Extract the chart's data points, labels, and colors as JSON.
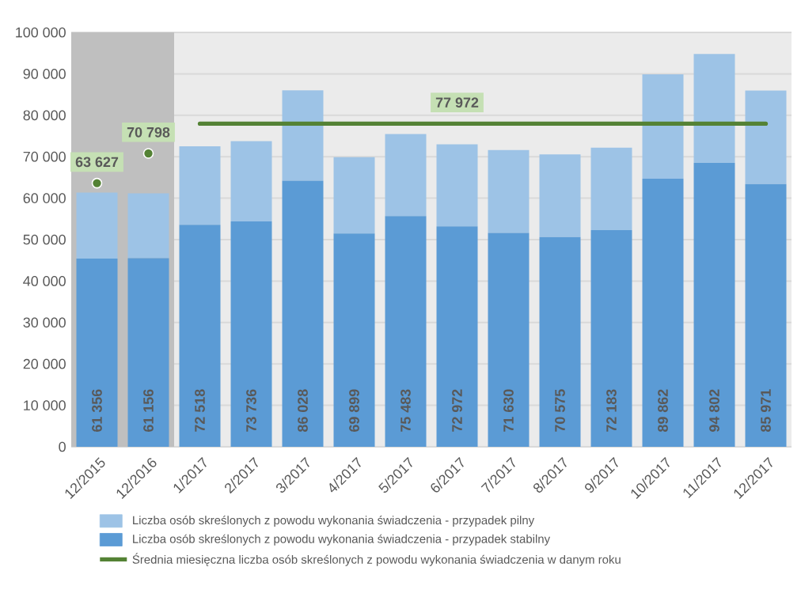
{
  "chart_data": {
    "type": "bar",
    "stacked": true,
    "grid": "y",
    "legend": "bottom",
    "categories": [
      "12/2015",
      "12/2016",
      "1/2017",
      "2/2017",
      "3/2017",
      "4/2017",
      "5/2017",
      "6/2017",
      "7/2017",
      "8/2017",
      "9/2017",
      "10/2017",
      "11/2017",
      "12/2017"
    ],
    "ylim": [
      0,
      100000
    ],
    "yticks": [
      0,
      {
        "value": 10000,
        "label": "10 000"
      },
      {
        "value": 20000,
        "label": "20 000"
      },
      {
        "value": 30000,
        "label": "30 000"
      },
      {
        "value": 40000,
        "label": "40 000"
      },
      {
        "value": 50000,
        "label": "50 000"
      },
      {
        "value": 60000,
        "label": "60 000"
      },
      {
        "value": 70000,
        "label": "70 000"
      },
      {
        "value": 80000,
        "label": "80 000"
      },
      {
        "value": 90000,
        "label": "90 000"
      },
      {
        "value": 100000,
        "label": "100 000"
      }
    ],
    "series": [
      {
        "name": "Liczba osób skreślonych z powodu wykonania świadczenia - przypadek stabilny",
        "color": "#5b9bd5",
        "values": [
          45400,
          45500,
          53600,
          54400,
          64200,
          51500,
          55700,
          53200,
          51600,
          50600,
          52300,
          64700,
          68500,
          63400
        ]
      },
      {
        "name": "Liczba osób skreślonych z powodu wykonania świadczenia - przypadek pilny",
        "color": "#9dc3e6",
        "values": [
          15956,
          15656,
          18918,
          19336,
          21828,
          18399,
          19783,
          19772,
          20030,
          19975,
          19883,
          25162,
          26302,
          22571
        ]
      },
      {
        "type": "scatter",
        "marker": "circle",
        "color": "#548235",
        "values": [
          63627,
          70798,
          null,
          null,
          null,
          null,
          null,
          null,
          null,
          null,
          null,
          null,
          null,
          null
        ],
        "value_labels": [
          "63 627",
          "70 798",
          null,
          null,
          null,
          null,
          null,
          null,
          null,
          null,
          null,
          null,
          null,
          null
        ]
      },
      {
        "type": "line",
        "marker": "none",
        "name": "Średnia miesięczna liczba osób skreślonych z powodu wykonania świadczenia w danym roku",
        "color": "#548235",
        "values": [
          null,
          null,
          77972,
          77972,
          77972,
          77972,
          77972,
          77972,
          77972,
          77972,
          77972,
          77972,
          77972,
          77972
        ],
        "value_labels": [
          null,
          null,
          null,
          null,
          null,
          null,
          null,
          "77 972",
          null,
          null,
          null,
          null,
          null,
          null
        ]
      }
    ],
    "totals": [
      "61 356",
      "61 156",
      "72 518",
      "73 736",
      "86 028",
      "69 899",
      "75 483",
      "72 972",
      "71 630",
      "70 575",
      "72 183",
      "89 862",
      "94 802",
      "85 971"
    ],
    "bands": [
      {
        "axis": "x",
        "from": "12/2015",
        "to": "12/2016",
        "color": "#bfbfbf"
      }
    ]
  }
}
